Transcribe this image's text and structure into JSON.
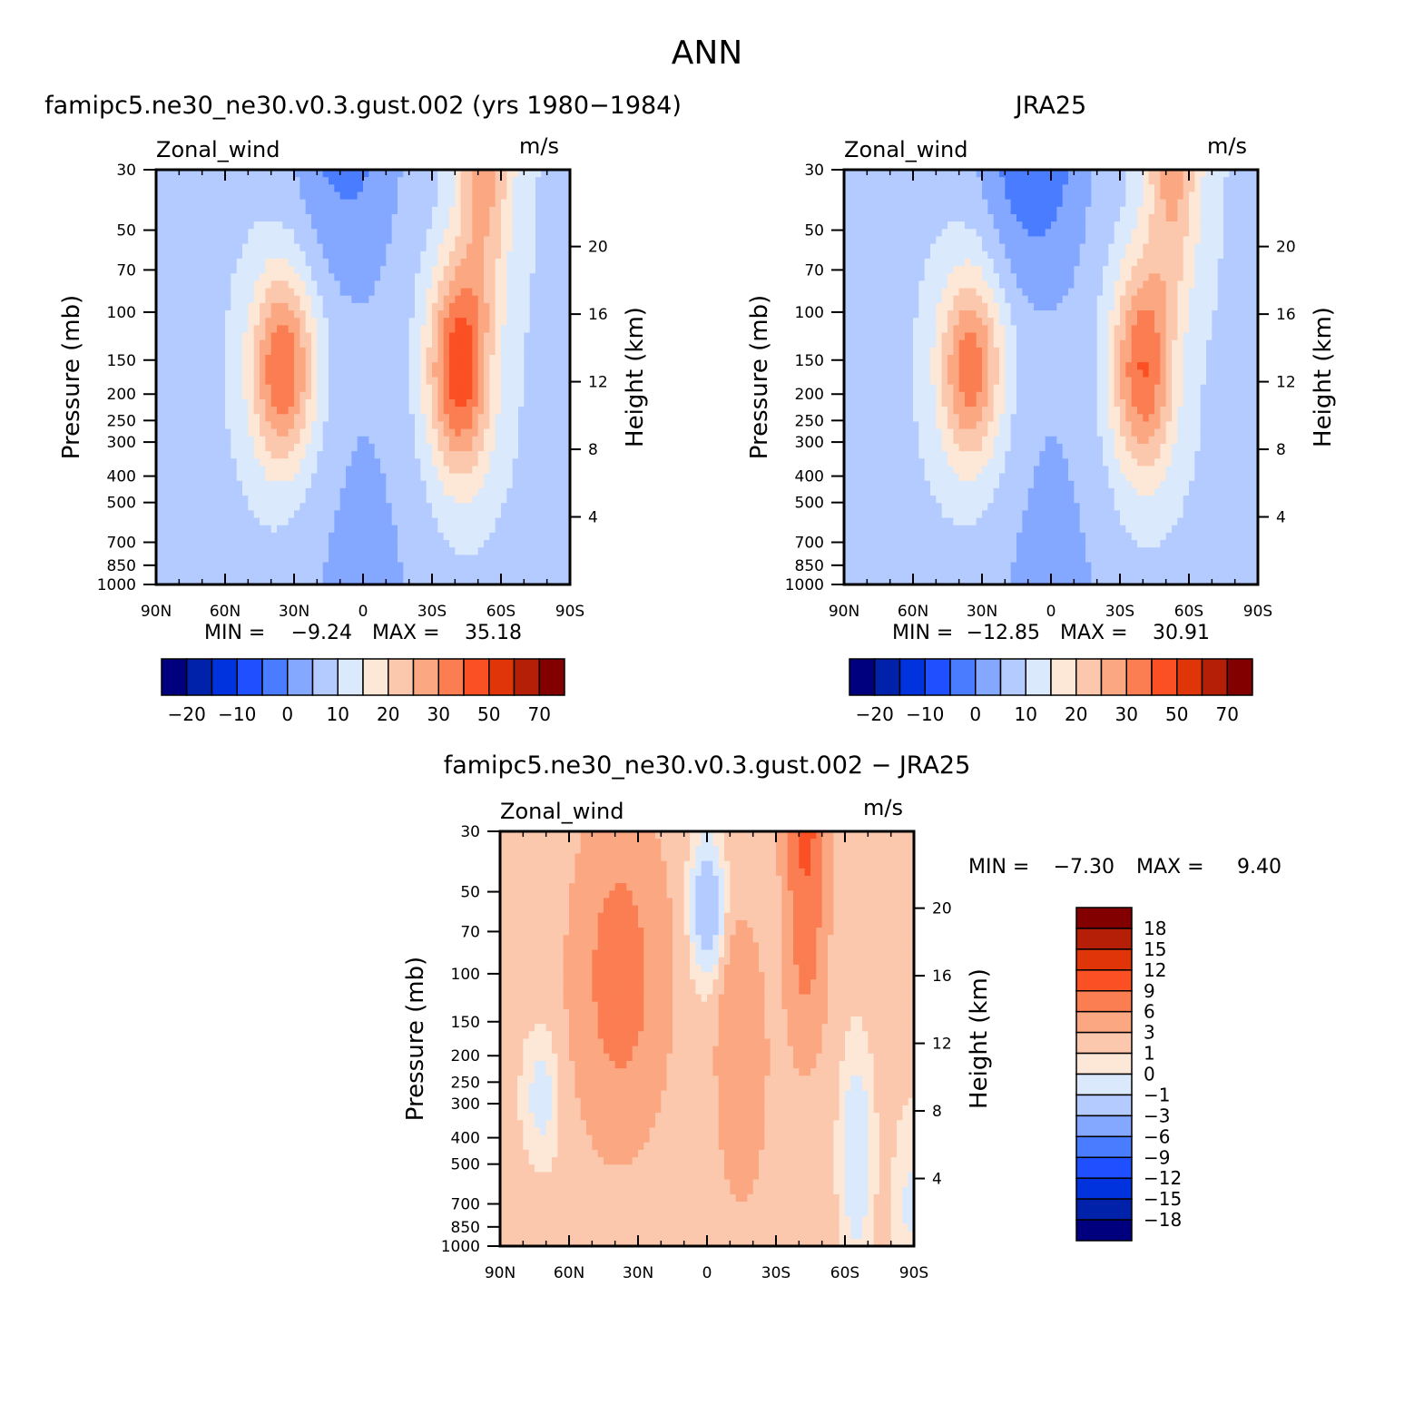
{
  "figure_title": "ANN",
  "colors": {
    "main_scale": [
      "#00007f",
      "#0022aa",
      "#0033dd",
      "#1f4fff",
      "#4a7cff",
      "#84a8ff",
      "#b3cbff",
      "#dbe9fc",
      "#fde7d6",
      "#fcc8ad",
      "#fba882",
      "#fb7d52",
      "#fb4f24",
      "#e03409",
      "#b51f07",
      "#830000"
    ],
    "diff_scale": [
      "#00007f",
      "#0022aa",
      "#0033dd",
      "#1f4fff",
      "#4a7cff",
      "#84a8ff",
      "#b3cbff",
      "#dbe9fc",
      "#fde7d6",
      "#fcc8ad",
      "#fba882",
      "#fb7d52",
      "#fb4f24",
      "#e03409",
      "#b51f07",
      "#830000"
    ]
  },
  "chart_data": [
    {
      "type": "contour",
      "title": "famipc5.ne30_ne30.v0.3.gust.002 (yrs 1980-1984)",
      "variable": "Zonal_wind",
      "units": "m/s",
      "xlabel": "",
      "ylabel": "Pressure (mb)",
      "ylabel_right": "Height (km)",
      "x_ticks": [
        "90N",
        "60N",
        "30N",
        "0",
        "30S",
        "60S",
        "90S"
      ],
      "x_range": [
        90,
        -90
      ],
      "y_ticks": [
        30,
        50,
        70,
        100,
        150,
        200,
        250,
        300,
        400,
        500,
        700,
        850,
        1000
      ],
      "y_range": [
        1000,
        30
      ],
      "right_ticks": [
        4,
        8,
        12,
        16,
        20
      ],
      "min_label": "MIN =",
      "min_value": "-9.24",
      "max_label": "MAX =",
      "max_value": "35.18",
      "contour_levels": [
        -25,
        -20,
        -15,
        -10,
        -5,
        0,
        5,
        10,
        15,
        20,
        25,
        30,
        40,
        50,
        60,
        70
      ],
      "colorbar_labels": [
        "-20",
        "-10",
        "0",
        "10",
        "20",
        "30",
        "50",
        "70"
      ],
      "field": {
        "nh_jet": 27,
        "sh_jet": 35,
        "sh_jet_lat": -42,
        "strat_easterly": -9
      }
    },
    {
      "type": "contour",
      "title": "JRA25",
      "variable": "Zonal_wind",
      "units": "m/s",
      "xlabel": "",
      "ylabel": "Pressure (mb)",
      "ylabel_right": "Height (km)",
      "x_ticks": [
        "90N",
        "60N",
        "30N",
        "0",
        "30S",
        "60S",
        "90S"
      ],
      "x_range": [
        90,
        -90
      ],
      "y_ticks": [
        30,
        50,
        70,
        100,
        150,
        200,
        250,
        300,
        400,
        500,
        700,
        850,
        1000
      ],
      "y_range": [
        1000,
        30
      ],
      "right_ticks": [
        4,
        8,
        12,
        16,
        20
      ],
      "min_label": "MIN =",
      "min_value": "-12.85",
      "max_label": "MAX =",
      "max_value": "30.91",
      "contour_levels": [
        -25,
        -20,
        -15,
        -10,
        -5,
        0,
        5,
        10,
        15,
        20,
        25,
        30,
        40,
        50,
        60,
        70
      ],
      "colorbar_labels": [
        "-20",
        "-10",
        "0",
        "10",
        "20",
        "30",
        "50",
        "70"
      ],
      "field": {
        "nh_jet": 25,
        "sh_jet": 31,
        "sh_jet_lat": -40,
        "strat_easterly": -12
      }
    },
    {
      "type": "contour",
      "title": "famipc5.ne30_ne30.v0.3.gust.002 - JRA25",
      "variable": "Zonal_wind",
      "units": "m/s",
      "xlabel": "",
      "ylabel": "Pressure (mb)",
      "ylabel_right": "Height (km)",
      "x_ticks": [
        "90N",
        "60N",
        "30N",
        "0",
        "30S",
        "60S",
        "90S"
      ],
      "x_range": [
        90,
        -90
      ],
      "y_ticks": [
        30,
        50,
        70,
        100,
        150,
        200,
        250,
        300,
        400,
        500,
        700,
        850,
        1000
      ],
      "y_range": [
        1000,
        30
      ],
      "right_ticks": [
        4,
        8,
        12,
        16,
        20
      ],
      "min_label": "MIN =",
      "min_value": "-7.30",
      "max_label": "MAX =",
      "max_value": "9.40",
      "contour_levels": [
        -21,
        -18,
        -15,
        -12,
        -9,
        -6,
        -3,
        -1,
        0,
        1,
        3,
        6,
        9,
        12,
        15,
        18,
        21
      ],
      "colorbar_labels": [
        "18",
        "15",
        "12",
        "9",
        "6",
        "3",
        "1",
        "0",
        "-1",
        "-3",
        "-6",
        "-9",
        "-12",
        "-15",
        "-18"
      ]
    }
  ]
}
